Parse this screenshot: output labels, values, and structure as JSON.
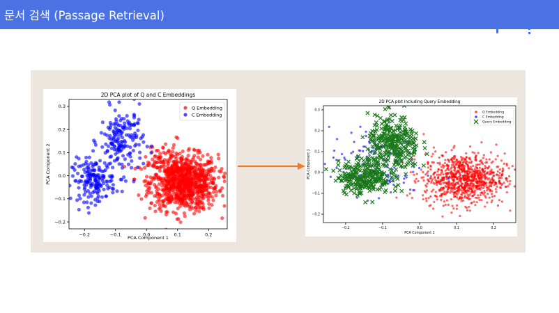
{
  "slide": {
    "title": "문서 검색 (Passage Retrieval)"
  },
  "colors": {
    "header": "#4a72e3",
    "panel": "#ede6df",
    "arrow": "#f07c28",
    "q": "#ff0000",
    "c": "#0000ff",
    "query": "#1a7a1a"
  },
  "figures": [
    {
      "title": "2D PCA plot of Q and C Embeddings",
      "xlabel": "PCA Component 1",
      "ylabel": "PCA Component 2",
      "legend": [
        "Q Embedding",
        "C Embedding"
      ],
      "xticks": [
        "−0.2",
        "−0.1",
        "0.0",
        "0.1",
        "0.2"
      ],
      "yticks": [
        "0.3",
        "0.2",
        "0.1",
        "0.0",
        "−0.1",
        "−0.2"
      ]
    },
    {
      "title": "2D PCA plot including Query Embedding",
      "xlabel": "PCA Component 1",
      "ylabel": "PCA Component 2",
      "legend": [
        "Q Embedding",
        "C Embedding",
        "Query Embedding"
      ],
      "xticks": [
        "−0.2",
        "−0.1",
        "0.0",
        "0.1",
        "0.2"
      ],
      "yticks": [
        "0.3",
        "0.2",
        "0.1",
        "0.0",
        "−0.1",
        "−0.2"
      ]
    }
  ],
  "chart_data": [
    {
      "type": "scatter",
      "title": "2D PCA plot of Q and C Embeddings",
      "xlabel": "PCA Component 1",
      "ylabel": "PCA Component 2",
      "xlim": [
        -0.25,
        0.26
      ],
      "ylim": [
        -0.23,
        0.33
      ],
      "legend_position": "top-right",
      "series": [
        {
          "name": "Q Embedding",
          "color": "#ff0000",
          "marker": "circle",
          "clusters": [
            {
              "center": [
                0.12,
                -0.03
              ],
              "spread": [
                0.055,
                0.06
              ],
              "count": 900
            },
            {
              "center": [
                0.05,
                0.08
              ],
              "spread": [
                0.03,
                0.04
              ],
              "count": 40
            }
          ]
        },
        {
          "name": "C Embedding",
          "color": "#0000ff",
          "marker": "circle",
          "clusters": [
            {
              "center": [
                -0.17,
                -0.02
              ],
              "spread": [
                0.035,
                0.045
              ],
              "count": 170
            },
            {
              "center": [
                -0.08,
                0.15
              ],
              "spread": [
                0.035,
                0.07
              ],
              "count": 180
            }
          ]
        }
      ]
    },
    {
      "type": "scatter",
      "title": "2D PCA plot including Query Embedding",
      "xlabel": "PCA Component 1",
      "ylabel": "PCA Component 2",
      "xlim": [
        -0.26,
        0.26
      ],
      "ylim": [
        -0.24,
        0.32
      ],
      "legend_position": "top-right",
      "series": [
        {
          "name": "Q Embedding",
          "color": "#ff0000",
          "marker": "circle",
          "clusters": [
            {
              "center": [
                0.12,
                -0.03
              ],
              "spread": [
                0.055,
                0.06
              ],
              "count": 900
            }
          ]
        },
        {
          "name": "C Embedding",
          "color": "#0000ff",
          "marker": "circle",
          "clusters": [
            {
              "center": [
                -0.12,
                0.05
              ],
              "spread": [
                0.06,
                0.08
              ],
              "count": 150
            }
          ]
        },
        {
          "name": "Query Embedding",
          "color": "#1a7a1a",
          "marker": "x",
          "clusters": [
            {
              "center": [
                -0.15,
                -0.02
              ],
              "spread": [
                0.035,
                0.04
              ],
              "count": 260
            },
            {
              "center": [
                -0.07,
                0.13
              ],
              "spread": [
                0.035,
                0.07
              ],
              "count": 320
            }
          ]
        }
      ]
    }
  ]
}
